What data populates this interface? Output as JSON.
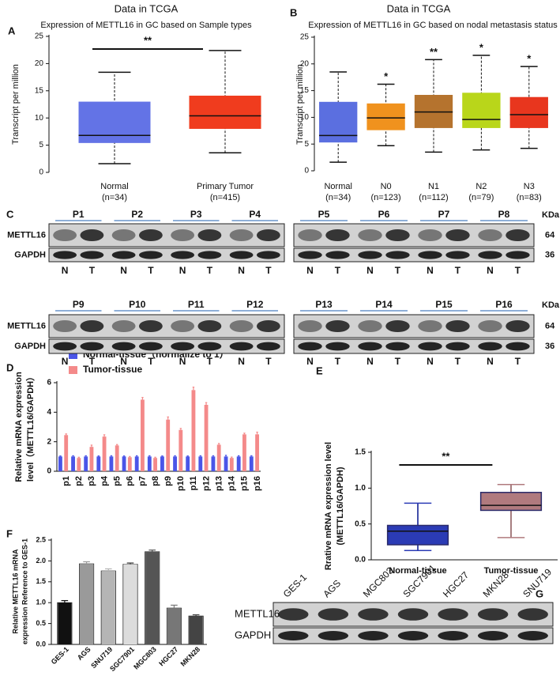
{
  "panels": [
    "A",
    "B",
    "C",
    "D",
    "E",
    "F",
    "G"
  ],
  "chart_data": [
    {
      "type": "box",
      "title": "Data in TCGA",
      "subtitle": "Expression of  METTL16 in GC based on Sample types",
      "ylabel": "Transcript per million",
      "categories": [
        "Normal",
        "Primary Tumor"
      ],
      "sample_sizes": [
        "(n=34)",
        "(n=415)"
      ],
      "boxes": [
        {
          "min": 1.6,
          "q1": 5.4,
          "median": 6.8,
          "q3": 13.0,
          "max": 18.4,
          "color": "#6373e6"
        },
        {
          "min": 3.6,
          "q1": 8.0,
          "median": 10.4,
          "q3": 14.1,
          "max": 22.4,
          "color": "#f03c1e"
        }
      ],
      "whisker_dash": true,
      "ylim": [
        0,
        25
      ],
      "yticks": [
        0,
        5,
        10,
        15,
        20,
        25
      ],
      "significance": "**"
    },
    {
      "type": "box",
      "title": "Data in TCGA",
      "subtitle": "Expression of  METTL16 in GC based on nodal metastasis status",
      "ylabel": "Transcript per million",
      "categories": [
        "Normal",
        "N0",
        "N1",
        "N2",
        "N3"
      ],
      "sample_sizes": [
        "(n=34)",
        "(n=123)",
        "(n=112)",
        "(n=79)",
        "(n=83)"
      ],
      "boxes": [
        {
          "min": 1.6,
          "q1": 5.3,
          "median": 6.6,
          "q3": 12.9,
          "max": 18.5,
          "color": "#5b6fe0"
        },
        {
          "min": 4.7,
          "q1": 7.6,
          "median": 9.9,
          "q3": 12.6,
          "max": 16.2,
          "color": "#f0921e"
        },
        {
          "min": 3.5,
          "q1": 8.0,
          "median": 11.0,
          "q3": 14.2,
          "max": 20.8,
          "color": "#b5732e"
        },
        {
          "min": 3.9,
          "q1": 8.0,
          "median": 9.6,
          "q3": 14.6,
          "max": 21.6,
          "color": "#b9d61a"
        },
        {
          "min": 4.2,
          "q1": 8.0,
          "median": 10.5,
          "q3": 13.8,
          "max": 19.5,
          "color": "#e8361e"
        }
      ],
      "whisker_dash": true,
      "ylim": [
        0,
        25
      ],
      "yticks": [
        0,
        5,
        10,
        15,
        20,
        25
      ],
      "significance": [
        null,
        "*",
        "**",
        "*",
        "*"
      ]
    },
    {
      "type": "bar",
      "ylabel": [
        "Relative mRNA expression",
        "level（METTL16/GAPDH）"
      ],
      "categories": [
        "p1",
        "p2",
        "p3",
        "p4",
        "p5",
        "p6",
        "p7",
        "p8",
        "p9",
        "p10",
        "p11",
        "p12",
        "p13",
        "p14",
        "p15",
        "p16"
      ],
      "series": [
        {
          "name": "Normal-tissue（normalize to 1）",
          "color": "#4a55e8",
          "values": [
            1,
            1,
            1,
            1,
            1,
            1,
            1,
            1,
            1,
            1,
            1,
            1,
            1,
            1,
            1,
            1
          ],
          "errors": [
            0.04,
            0.05,
            0.05,
            0.04,
            0.05,
            0.04,
            0.05,
            0.05,
            0.04,
            0.05,
            0.04,
            0.05,
            0.05,
            0.08,
            0.05,
            0.05
          ]
        },
        {
          "name": "Tumor-tissue",
          "color": "#f48a8a",
          "values": [
            2.45,
            0.9,
            1.65,
            2.35,
            1.75,
            0.95,
            4.85,
            0.9,
            3.5,
            2.8,
            5.5,
            4.5,
            1.8,
            0.9,
            2.5,
            2.5
          ],
          "errors": [
            0.08,
            0.05,
            0.12,
            0.12,
            0.06,
            0.05,
            0.15,
            0.05,
            0.18,
            0.1,
            0.2,
            0.15,
            0.08,
            0.06,
            0.08,
            0.15
          ]
        }
      ],
      "ylim": [
        0,
        6
      ],
      "yticks": [
        0,
        2,
        4,
        6
      ]
    },
    {
      "type": "box",
      "ylabel": [
        "Rrative mRNA expression level",
        "(METTL16/GAPDH)"
      ],
      "categories": [
        "Normal-tissue",
        "Tumor-tissue"
      ],
      "boxes": [
        {
          "min": 0.13,
          "q1": 0.21,
          "median": 0.4,
          "q3": 0.48,
          "max": 0.79,
          "color": "#2b3bb5"
        },
        {
          "min": 0.31,
          "q1": 0.69,
          "median": 0.76,
          "q3": 0.94,
          "max": 1.05,
          "color": "#b07a7e"
        }
      ],
      "whisker_dash": false,
      "ylim": [
        0,
        1.5
      ],
      "yticks": [
        {
          "value": 0,
          "label": "0.0"
        },
        {
          "value": 0.5,
          "label": "0.5"
        },
        {
          "value": 1,
          "label": "1.0"
        },
        {
          "value": 1.5,
          "label": "1.5"
        }
      ],
      "significance": "**"
    },
    {
      "type": "bar",
      "ylabel": [
        "Relative METTL16 mRNA",
        "expression Reference to GES-1"
      ],
      "categories": [
        "GES-1",
        "AGS",
        "SNU719",
        "SGC7901",
        "MGC803",
        "HGC27",
        "MKN28"
      ],
      "values": [
        1.0,
        1.93,
        1.76,
        1.92,
        2.22,
        0.87,
        0.68
      ],
      "errors": [
        0.05,
        0.05,
        0.05,
        0.03,
        0.04,
        0.07,
        0.03
      ],
      "colors": [
        "#111111",
        "#9a9a9a",
        "#b5b5b5",
        "#dcdcdc",
        "#555555",
        "#777777",
        "#444444"
      ],
      "ylim": [
        0,
        2.5
      ],
      "yticks": [
        {
          "value": 0,
          "label": "0.0"
        },
        {
          "value": 0.5,
          "label": "0.5"
        },
        {
          "value": 1,
          "label": "1.0"
        },
        {
          "value": 1.5,
          "label": "1.5"
        },
        {
          "value": 2,
          "label": "2.0"
        },
        {
          "value": 2.5,
          "label": "2.5"
        }
      ]
    }
  ],
  "blots": [
    {
      "groups": [
        "P1",
        "P2",
        "P3",
        "P4"
      ],
      "rows": [
        "METTL16",
        "GAPDH"
      ],
      "lanes": [
        "N",
        "T"
      ]
    },
    {
      "groups": [
        "P5",
        "P6",
        "P7",
        "P8"
      ],
      "lanes": [
        "N",
        "T"
      ],
      "unit": "KDa",
      "sizes": [
        64,
        36
      ]
    },
    {
      "groups": [
        "P9",
        "P10",
        "P11",
        "P12"
      ],
      "rows": [
        "METTL16",
        "GAPDH"
      ],
      "lanes": [
        "N",
        "T"
      ]
    },
    {
      "groups": [
        "P13",
        "P14",
        "P15",
        "P16"
      ],
      "lanes": [
        "N",
        "T"
      ],
      "unit": "KDa",
      "sizes": [
        64,
        36
      ]
    },
    {
      "cells": [
        "GES-1",
        "AGS",
        "MGC803",
        "SGC7901",
        "HGC27",
        "MKN28",
        "SNU719"
      ],
      "rows": [
        "METTL16",
        "GAPDH"
      ]
    }
  ]
}
